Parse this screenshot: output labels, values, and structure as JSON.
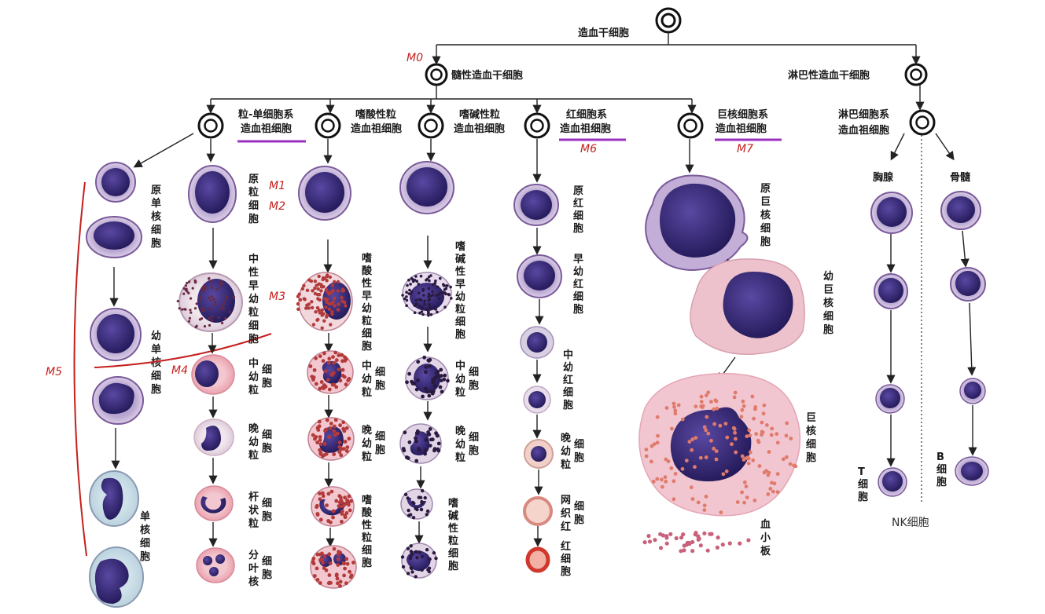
{
  "colors": {
    "nucleus": "#3a2a7a",
    "nucleus_dark": "#2a1f63",
    "cytoplasm": "#c9b6d8",
    "eos_granule": "#b33a3a",
    "baso_granule": "#2a1a40",
    "rbc": "#e07b6b",
    "annotation_red": "#c4201e",
    "highlight_purple": "#9b30c0"
  },
  "root": {
    "label": "造血干细胞"
  },
  "myeloid_stem": {
    "label": "髓性造血干细胞",
    "mark": "M0"
  },
  "lymphoid_stem": {
    "label": "淋巴性造血干细胞"
  },
  "progenitors": {
    "gm_line1": "粒-单细胞系",
    "gm_line2": "造血祖细胞",
    "eos_line1": "嗜酸性粒",
    "eos_line2": "造血祖细胞",
    "baso_line1": "嗜碱性粒",
    "baso_line2": "造血祖细胞",
    "ery_line1": "红细胞系",
    "ery_line2": "造血祖细胞",
    "ery_mark": "M6",
    "mk_line1": "巨核细胞系",
    "mk_line2": "造血祖细胞",
    "mk_mark": "M7",
    "lym_line1": "淋巴细胞系",
    "lym_line2": "造血祖细胞"
  },
  "monocyte": {
    "mono_blast": "原单核细胞",
    "promono": "幼单核细胞",
    "mono": "单核细胞",
    "mark": "M5"
  },
  "neutrophil": {
    "myeloblast": "原粒细胞",
    "promyelocyte": "中性早幼粒细胞",
    "myelocyte": "中幼粒",
    "metamyelocyte": "晚幼粒",
    "band": "杆状粒",
    "segmented": "分叶核",
    "cell_suffix": "细胞",
    "m1": "M1",
    "m2": "M2",
    "m3": "M3",
    "m4": "M4"
  },
  "eosinophil": {
    "promyelocyte": "嗜酸性早幼粒细胞",
    "myelocyte": "中幼粒",
    "metamyelocyte": "晚幼粒",
    "mature": "嗜酸性粒细胞",
    "cell_suffix": "细胞"
  },
  "basophil": {
    "promyelocyte": "嗜碱性早幼粒细胞",
    "myelocyte": "中幼粒",
    "metamyelocyte": "晚幼粒",
    "mature": "嗜碱性粒细胞",
    "cell_suffix": "细胞"
  },
  "erythroid": {
    "pronormo": "原红细胞",
    "early": "早幼红细胞",
    "middle": "中幼红细胞",
    "late": "晚幼粒",
    "reticulo": "网织红",
    "rbc": "红细胞",
    "cell_suffix": "细胞"
  },
  "megakaryocyte": {
    "mk_blast": "原巨核细胞",
    "pro_mk": "幼巨核细胞",
    "mk": "巨核细胞",
    "platelet": "血小板"
  },
  "lymphoid": {
    "thymus": "胸腺",
    "marrow": "骨髓",
    "t_cell": "T细胞",
    "b_cell": "B细胞",
    "nk": "NK细胞"
  }
}
